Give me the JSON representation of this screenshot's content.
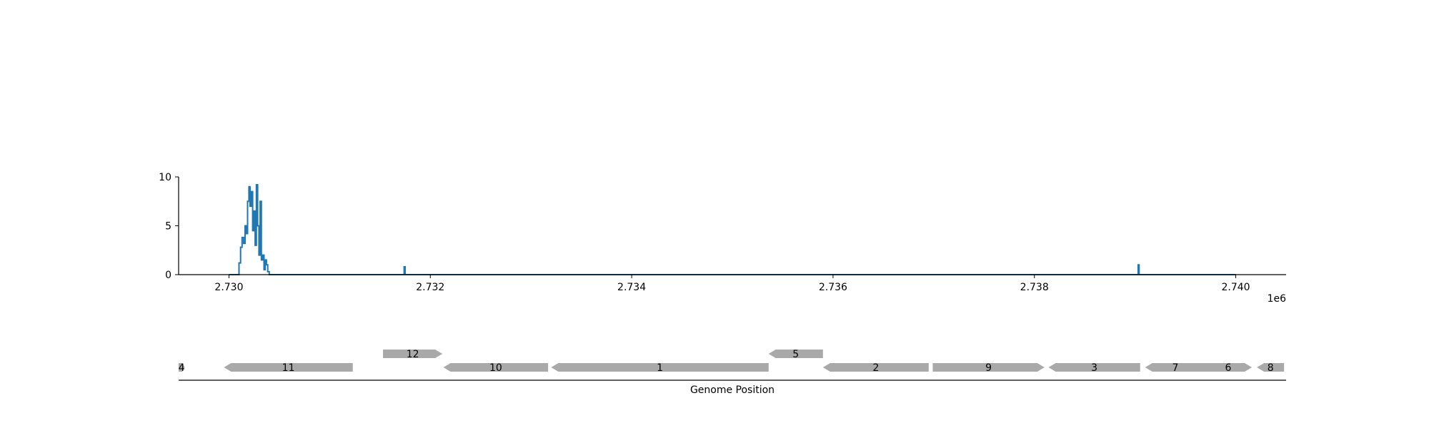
{
  "chart_data": [
    {
      "type": "line",
      "panel": "coverage",
      "x_range": [
        2729500,
        2740500
      ],
      "y_range": [
        0,
        10
      ],
      "xticks": [
        2730000,
        2732000,
        2734000,
        2736000,
        2738000,
        2740000
      ],
      "xtick_labels": [
        "2.730",
        "2.732",
        "2.734",
        "2.736",
        "2.738",
        "2.740"
      ],
      "x_offset_label": "1e6",
      "yticks": [
        0,
        5,
        10
      ],
      "ytick_labels": [
        "0",
        "5",
        "10"
      ],
      "series_color": "#1f77b4",
      "series": [
        {
          "x": [
            2730000,
            2730100,
            2730100,
            2730115,
            2730115,
            2730130,
            2730130,
            2730145,
            2730145,
            2730160,
            2730160,
            2730172,
            2730172,
            2730185,
            2730185,
            2730198,
            2730198,
            2730210,
            2730210,
            2730222,
            2730222,
            2730235,
            2730235,
            2730248,
            2730248,
            2730260,
            2730260,
            2730272,
            2730272,
            2730285,
            2730285,
            2730298,
            2730298,
            2730310,
            2730310,
            2730322,
            2730322,
            2730335,
            2730335,
            2730348,
            2730348,
            2730360,
            2730360,
            2730372,
            2730372,
            2730385,
            2730385,
            2730400,
            2730400,
            2731740,
            2731740,
            2731750,
            2731750,
            2739030,
            2739030,
            2739040,
            2739040,
            2740000
          ],
          "y": [
            0,
            0,
            1.2,
            1.2,
            2.8,
            2.8,
            3.8,
            3.8,
            3.2,
            3.2,
            5.0,
            5.0,
            4.2,
            4.2,
            7.5,
            7.5,
            9.0,
            9.0,
            7.0,
            7.0,
            8.5,
            8.5,
            4.5,
            4.5,
            6.5,
            6.5,
            3.0,
            3.0,
            9.2,
            9.2,
            5.0,
            5.0,
            2.0,
            2.0,
            7.5,
            7.5,
            1.5,
            1.5,
            2.0,
            2.0,
            0.5,
            0.5,
            1.5,
            1.5,
            1.0,
            1.0,
            0.3,
            0.3,
            0,
            0,
            0.8,
            0.8,
            0,
            0,
            1.0,
            1.0,
            0,
            0
          ]
        }
      ]
    },
    {
      "type": "gene-map",
      "panel": "genes",
      "x_range": [
        2729500,
        2740500
      ],
      "xlabel": "Genome Position",
      "gene_color": "#a9a9a9",
      "genes": [
        {
          "label": "4",
          "start": 2729500,
          "end": 2729560,
          "strand": "+",
          "row": 0
        },
        {
          "label": "11",
          "start": 2729950,
          "end": 2731230,
          "strand": "-",
          "row": 0
        },
        {
          "label": "12",
          "start": 2731530,
          "end": 2732120,
          "strand": "+",
          "row": 1
        },
        {
          "label": "10",
          "start": 2732130,
          "end": 2733170,
          "strand": "-",
          "row": 0
        },
        {
          "label": "1",
          "start": 2733200,
          "end": 2735360,
          "strand": "-",
          "row": 0
        },
        {
          "label": "5",
          "start": 2735360,
          "end": 2735900,
          "strand": "-",
          "row": 1
        },
        {
          "label": "2",
          "start": 2735900,
          "end": 2736950,
          "strand": "-",
          "row": 0
        },
        {
          "label": "9",
          "start": 2736990,
          "end": 2738100,
          "strand": "+",
          "row": 0
        },
        {
          "label": "3",
          "start": 2738140,
          "end": 2739050,
          "strand": "-",
          "row": 0
        },
        {
          "label": "7",
          "start": 2739100,
          "end": 2739700,
          "strand": "-",
          "row": 0
        },
        {
          "label": "6",
          "start": 2739690,
          "end": 2740160,
          "strand": "+",
          "row": 0
        },
        {
          "label": "8",
          "start": 2740210,
          "end": 2740480,
          "strand": "-",
          "row": 0
        }
      ]
    }
  ]
}
